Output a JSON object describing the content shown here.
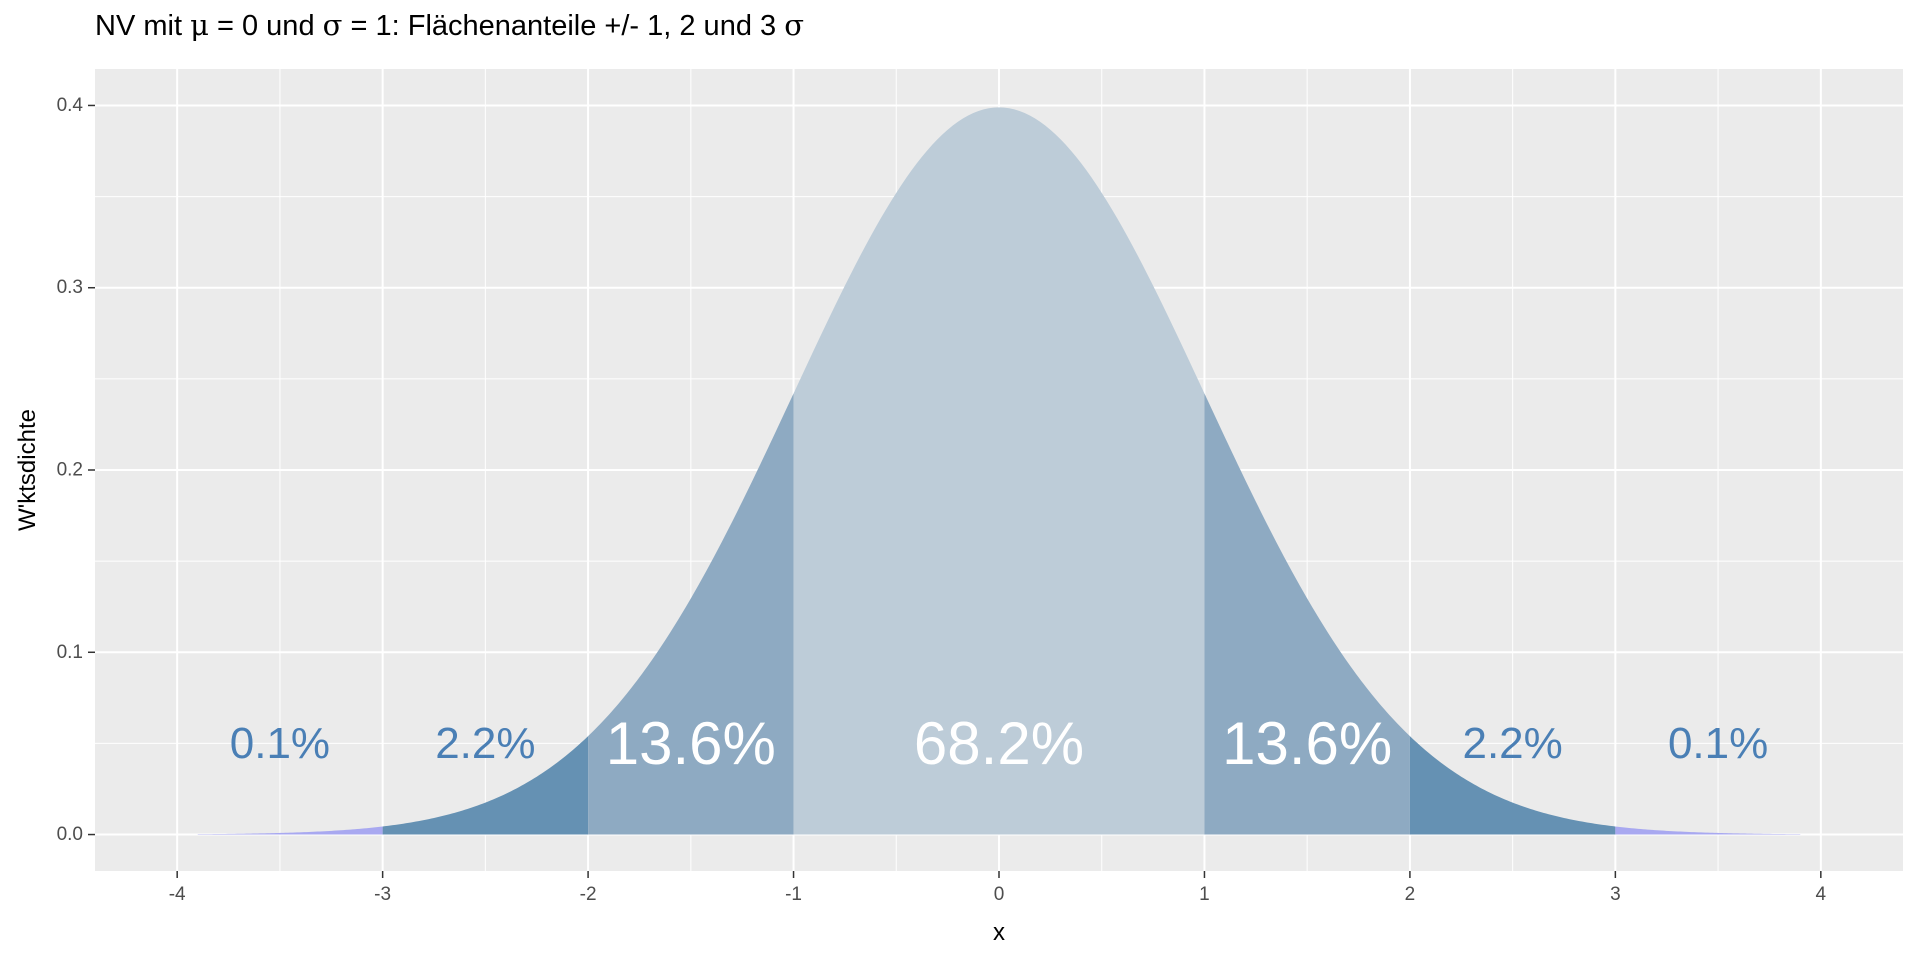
{
  "chart_data": {
    "type": "area",
    "title_parts": {
      "prefix": "NV mit ",
      "mu": "μ",
      "eq1": " = ",
      "mu_val": "0",
      "mid": " und ",
      "sigma": "σ",
      "eq2": " = ",
      "sigma_val": "1",
      "suffix": ": Flächenanteile +/- 1, 2 und 3 ",
      "sigma_end": "σ"
    },
    "xlabel": "x",
    "ylabel": "W'ktsdichte",
    "xlim": [
      -4.4,
      4.4
    ],
    "ylim": [
      -0.02,
      0.42
    ],
    "x_ticks": [
      -4,
      -3,
      -2,
      -1,
      0,
      1,
      2,
      3,
      4
    ],
    "x_tick_labels": [
      "-4",
      "-3",
      "-2",
      "-1",
      "0",
      "1",
      "2",
      "3",
      "4"
    ],
    "y_ticks": [
      0.0,
      0.1,
      0.2,
      0.3,
      0.4
    ],
    "y_tick_labels": [
      "0.0",
      "0.1",
      "0.2",
      "0.3",
      "0.4"
    ],
    "grid": true,
    "distribution": {
      "name": "normal",
      "mean": 0,
      "sd": 1,
      "x_range": [
        -3.9,
        3.9
      ]
    },
    "regions": [
      {
        "from": -3.9,
        "to": -3,
        "color": "#a8a8f0",
        "label": "0.1%",
        "label_x": -3.5,
        "label_color": "#4a7fb5",
        "label_size": "small"
      },
      {
        "from": -3,
        "to": -2,
        "color": "#6591b3",
        "label": "2.2%",
        "label_x": -2.5,
        "label_color": "#4a7fb5",
        "label_size": "small"
      },
      {
        "from": -2,
        "to": -1,
        "color": "#8eaac2",
        "label": "13.6%",
        "label_x": -1.5,
        "label_color": "#ffffff",
        "label_size": "large"
      },
      {
        "from": -1,
        "to": 1,
        "color": "#bdccd8",
        "label": "68.2%",
        "label_x": 0,
        "label_color": "#ffffff",
        "label_size": "large"
      },
      {
        "from": 1,
        "to": 2,
        "color": "#8eaac2",
        "label": "13.6%",
        "label_x": 1.5,
        "label_color": "#ffffff",
        "label_size": "large"
      },
      {
        "from": 2,
        "to": 3,
        "color": "#6591b3",
        "label": "2.2%",
        "label_x": 2.5,
        "label_color": "#4a7fb5",
        "label_size": "small"
      },
      {
        "from": 3,
        "to": 3.9,
        "color": "#a8a8f0",
        "label": "0.1%",
        "label_x": 3.5,
        "label_color": "#4a7fb5",
        "label_size": "small"
      }
    ],
    "label_y": 0.05,
    "panel_color": "#ebebeb",
    "grid_color": "#ffffff"
  }
}
